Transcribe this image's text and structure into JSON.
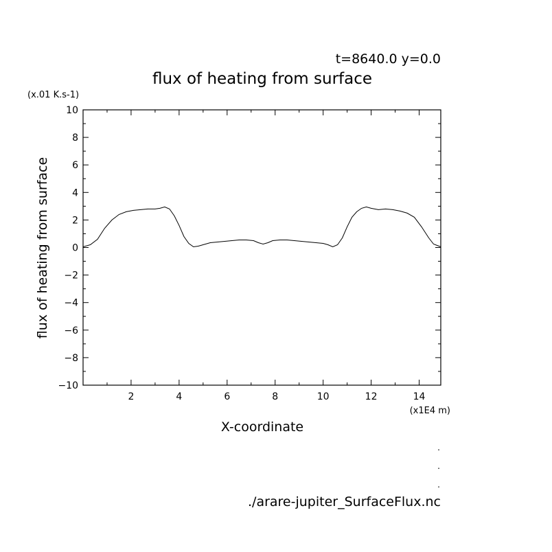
{
  "header": {
    "time_label": "t=8640.0 y=0.0",
    "title": "flux of heating from surface",
    "unit_label": "(x.01 K.s-1)",
    "x_unit_label": "(x1E4 m)",
    "xlabel": "X-coordinate",
    "ylabel": "flux of heating from surface",
    "source_file": "./arare-jupiter_SurfaceFlux.nc"
  },
  "chart_data": {
    "type": "line",
    "title": "flux of heating from surface",
    "xlabel": "X-coordinate",
    "ylabel": "flux of heating from surface",
    "xlim": [
      0,
      14.9
    ],
    "ylim": [
      -10,
      10
    ],
    "x_ticks": [
      "2",
      "4",
      "6",
      "8",
      "10",
      "12",
      "14"
    ],
    "x_tick_values": [
      2,
      4,
      6,
      8,
      10,
      12,
      14
    ],
    "y_ticks": [
      "10",
      "8",
      "6",
      "4",
      "2",
      "0",
      "−2",
      "−4",
      "−6",
      "−8",
      "−10"
    ],
    "y_tick_values": [
      10,
      8,
      6,
      4,
      2,
      0,
      -2,
      -4,
      -6,
      -8,
      -10
    ],
    "grid": false,
    "series": [
      {
        "x": [
          0,
          0.3,
          0.6,
          0.9,
          1.2,
          1.5,
          1.8,
          2.1,
          2.4,
          2.7,
          3.0,
          3.2,
          3.4,
          3.6,
          3.8,
          4.0,
          4.2,
          4.4,
          4.6,
          4.8,
          5.0,
          5.3,
          5.6,
          5.9,
          6.2,
          6.5,
          6.8,
          7.1,
          7.3,
          7.5,
          7.7,
          7.9,
          8.2,
          8.5,
          8.8,
          9.1,
          9.4,
          9.7,
          10.0,
          10.2,
          10.4,
          10.6,
          10.8,
          11.0,
          11.2,
          11.4,
          11.6,
          11.8,
          12.0,
          12.3,
          12.6,
          12.9,
          13.2,
          13.5,
          13.8,
          14.1,
          14.4,
          14.6,
          14.9
        ],
        "y": [
          0.05,
          0.2,
          0.6,
          1.4,
          2.0,
          2.4,
          2.6,
          2.7,
          2.75,
          2.8,
          2.8,
          2.85,
          2.95,
          2.8,
          2.3,
          1.6,
          0.8,
          0.3,
          0.05,
          0.1,
          0.2,
          0.35,
          0.4,
          0.45,
          0.5,
          0.55,
          0.55,
          0.5,
          0.35,
          0.25,
          0.35,
          0.5,
          0.55,
          0.55,
          0.5,
          0.45,
          0.4,
          0.35,
          0.3,
          0.2,
          0.05,
          0.2,
          0.7,
          1.5,
          2.2,
          2.6,
          2.85,
          2.95,
          2.85,
          2.75,
          2.8,
          2.75,
          2.65,
          2.5,
          2.2,
          1.5,
          0.7,
          0.25,
          0.05
        ]
      }
    ]
  },
  "decorations": {
    "corner_marks": [
      ".",
      ".",
      "."
    ]
  }
}
